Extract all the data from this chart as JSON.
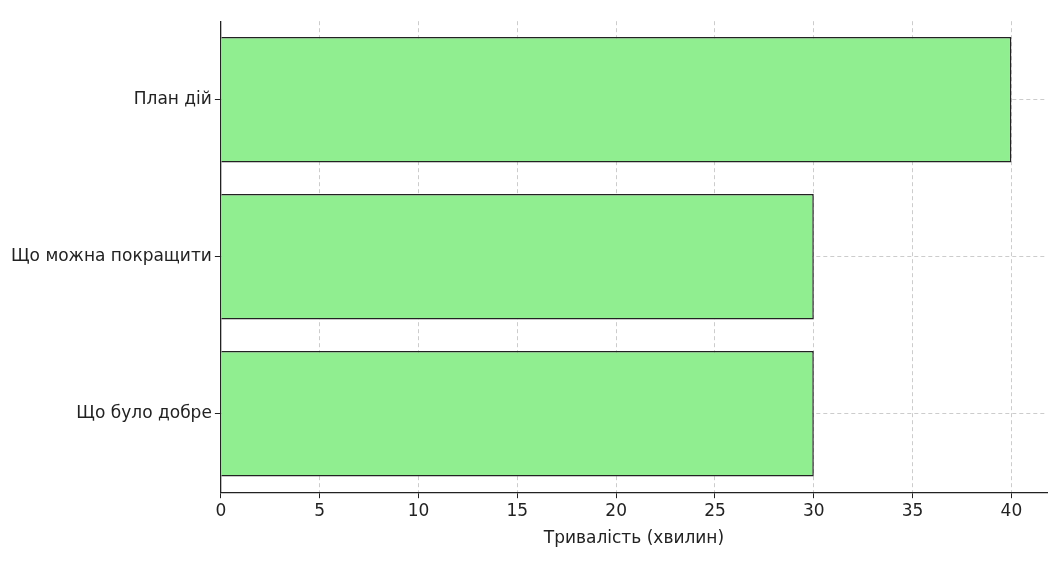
{
  "chart_data": {
    "type": "bar",
    "orientation": "horizontal",
    "xlabel": "Тривалість (хвилин)",
    "categories": [
      "План дій",
      "Що можна покращити",
      "Що було добре"
    ],
    "values": [
      40,
      30,
      30
    ],
    "color": "#90ee90",
    "xlim": [
      0,
      41.8
    ],
    "xticks": [
      0,
      5,
      10,
      15,
      20,
      25,
      30,
      35,
      40
    ],
    "grid": true
  }
}
